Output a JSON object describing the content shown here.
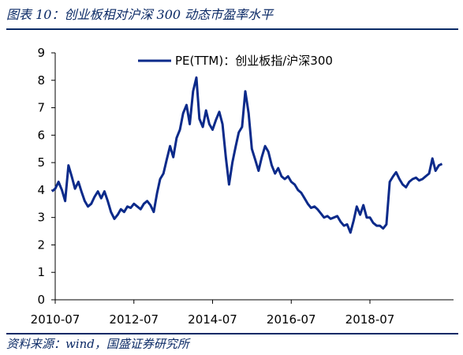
{
  "header": {
    "title": "图表 10：创业板相对沪深 300 动态市盈率水平"
  },
  "footer": {
    "source": "资料来源：wind，国盛证券研究所"
  },
  "chart_data": {
    "type": "line",
    "title": "",
    "xlabel": "",
    "ylabel": "",
    "ylim": [
      0,
      9
    ],
    "yticks": [
      "0",
      "1",
      "2",
      "3",
      "4",
      "5",
      "6",
      "7",
      "8",
      "9"
    ],
    "xticks": [
      "2010-07",
      "2012-07",
      "2014-07",
      "2016-07",
      "2018-07"
    ],
    "grid": false,
    "legend_position": "top",
    "series": [
      {
        "name": "PE(TTM)：创业板指/沪深300",
        "color": "#0b2a8a",
        "points": [
          [
            "2010-06-01",
            3.95
          ],
          [
            "2010-07-01",
            4.05
          ],
          [
            "2010-08-01",
            4.3
          ],
          [
            "2010-09-01",
            4.0
          ],
          [
            "2010-10-01",
            3.6
          ],
          [
            "2010-11-01",
            4.9
          ],
          [
            "2010-12-01",
            4.5
          ],
          [
            "2011-01-01",
            4.05
          ],
          [
            "2011-02-01",
            4.3
          ],
          [
            "2011-03-01",
            3.95
          ],
          [
            "2011-04-01",
            3.6
          ],
          [
            "2011-05-01",
            3.4
          ],
          [
            "2011-06-01",
            3.5
          ],
          [
            "2011-07-01",
            3.75
          ],
          [
            "2011-08-01",
            3.95
          ],
          [
            "2011-09-01",
            3.7
          ],
          [
            "2011-10-01",
            3.95
          ],
          [
            "2011-11-01",
            3.6
          ],
          [
            "2011-12-01",
            3.2
          ],
          [
            "2012-01-01",
            2.95
          ],
          [
            "2012-02-01",
            3.1
          ],
          [
            "2012-03-01",
            3.3
          ],
          [
            "2012-04-01",
            3.2
          ],
          [
            "2012-05-01",
            3.4
          ],
          [
            "2012-06-01",
            3.35
          ],
          [
            "2012-07-01",
            3.5
          ],
          [
            "2012-08-01",
            3.4
          ],
          [
            "2012-09-01",
            3.3
          ],
          [
            "2012-10-01",
            3.5
          ],
          [
            "2012-11-01",
            3.6
          ],
          [
            "2012-12-01",
            3.45
          ],
          [
            "2013-01-01",
            3.2
          ],
          [
            "2013-02-01",
            3.9
          ],
          [
            "2013-03-01",
            4.4
          ],
          [
            "2013-04-01",
            4.6
          ],
          [
            "2013-05-01",
            5.1
          ],
          [
            "2013-06-01",
            5.6
          ],
          [
            "2013-07-01",
            5.2
          ],
          [
            "2013-08-01",
            5.9
          ],
          [
            "2013-09-01",
            6.2
          ],
          [
            "2013-10-01",
            6.8
          ],
          [
            "2013-11-01",
            7.1
          ],
          [
            "2013-12-01",
            6.4
          ],
          [
            "2014-01-01",
            7.6
          ],
          [
            "2014-02-01",
            8.1
          ],
          [
            "2014-03-01",
            6.6
          ],
          [
            "2014-04-01",
            6.3
          ],
          [
            "2014-05-01",
            6.9
          ],
          [
            "2014-06-01",
            6.4
          ],
          [
            "2014-07-01",
            6.2
          ],
          [
            "2014-08-01",
            6.55
          ],
          [
            "2014-09-01",
            6.85
          ],
          [
            "2014-10-01",
            6.4
          ],
          [
            "2014-11-01",
            5.2
          ],
          [
            "2014-12-01",
            4.2
          ],
          [
            "2015-01-01",
            5.0
          ],
          [
            "2015-02-01",
            5.6
          ],
          [
            "2015-03-01",
            6.1
          ],
          [
            "2015-04-01",
            6.3
          ],
          [
            "2015-05-01",
            7.6
          ],
          [
            "2015-06-01",
            6.8
          ],
          [
            "2015-07-01",
            5.5
          ],
          [
            "2015-08-01",
            5.1
          ],
          [
            "2015-09-01",
            4.7
          ],
          [
            "2015-10-01",
            5.2
          ],
          [
            "2015-11-01",
            5.6
          ],
          [
            "2015-12-01",
            5.4
          ],
          [
            "2016-01-01",
            4.9
          ],
          [
            "2016-02-01",
            4.6
          ],
          [
            "2016-03-01",
            4.8
          ],
          [
            "2016-04-01",
            4.5
          ],
          [
            "2016-05-01",
            4.4
          ],
          [
            "2016-06-01",
            4.5
          ],
          [
            "2016-07-01",
            4.3
          ],
          [
            "2016-08-01",
            4.2
          ],
          [
            "2016-09-01",
            4.0
          ],
          [
            "2016-10-01",
            3.9
          ],
          [
            "2016-11-01",
            3.7
          ],
          [
            "2016-12-01",
            3.5
          ],
          [
            "2017-01-01",
            3.35
          ],
          [
            "2017-02-01",
            3.4
          ],
          [
            "2017-03-01",
            3.3
          ],
          [
            "2017-04-01",
            3.15
          ],
          [
            "2017-05-01",
            3.0
          ],
          [
            "2017-06-01",
            3.05
          ],
          [
            "2017-07-01",
            2.95
          ],
          [
            "2017-08-01",
            3.0
          ],
          [
            "2017-09-01",
            3.05
          ],
          [
            "2017-10-01",
            2.85
          ],
          [
            "2017-11-01",
            2.7
          ],
          [
            "2017-12-01",
            2.75
          ],
          [
            "2018-01-01",
            2.45
          ],
          [
            "2018-02-01",
            2.9
          ],
          [
            "2018-03-01",
            3.4
          ],
          [
            "2018-04-01",
            3.1
          ],
          [
            "2018-05-01",
            3.45
          ],
          [
            "2018-06-01",
            3.0
          ],
          [
            "2018-07-01",
            3.0
          ],
          [
            "2018-08-01",
            2.8
          ],
          [
            "2018-09-01",
            2.7
          ],
          [
            "2018-10-01",
            2.7
          ],
          [
            "2018-11-01",
            2.6
          ],
          [
            "2018-12-01",
            2.75
          ],
          [
            "2019-01-01",
            4.3
          ],
          [
            "2019-02-01",
            4.5
          ],
          [
            "2019-03-01",
            4.65
          ],
          [
            "2019-04-01",
            4.4
          ],
          [
            "2019-05-01",
            4.2
          ],
          [
            "2019-06-01",
            4.1
          ],
          [
            "2019-07-01",
            4.3
          ],
          [
            "2019-08-01",
            4.4
          ],
          [
            "2019-09-01",
            4.45
          ],
          [
            "2019-10-01",
            4.35
          ],
          [
            "2019-11-01",
            4.4
          ],
          [
            "2019-12-01",
            4.5
          ],
          [
            "2020-01-01",
            4.6
          ],
          [
            "2020-02-01",
            5.15
          ],
          [
            "2020-03-01",
            4.7
          ],
          [
            "2020-04-01",
            4.9
          ],
          [
            "2020-05-01",
            4.95
          ]
        ]
      }
    ]
  }
}
